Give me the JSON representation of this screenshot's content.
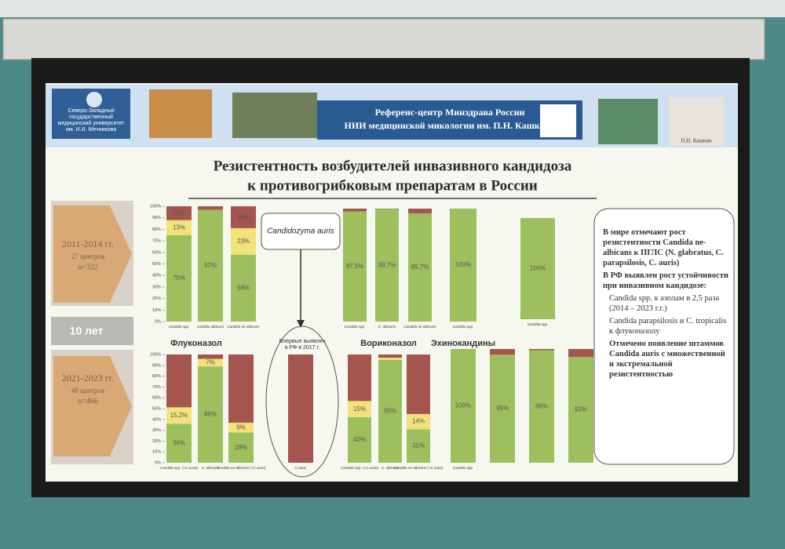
{
  "header": {
    "institute": "Северо-Западный государственный медицинский университет им. И.И. Мечникова",
    "center_line1": "Референс-центр Минздрава России",
    "center_line2": "НИИ медицинской микологии им. П.Н. Кашкина",
    "portrait_caption": "П.Н. Кашкин"
  },
  "title": [
    "Резистентность возбудителей инвазивного кандидоза",
    "к противогрибковым препаратам в России"
  ],
  "periods": [
    {
      "years": "2011-2014 гг.",
      "centers": "27 центров",
      "n": "n=322"
    },
    {
      "years": "2021-2023 гг.",
      "centers": "48 центров",
      "n": "n=466"
    }
  ],
  "interval": "10 лет",
  "drugs": [
    "Флуконазол",
    "Вориконазол",
    "Эхинокандины"
  ],
  "auris": {
    "name": "Candidozyma auris",
    "note": "Впервые выявлен в РФ в 2017 г."
  },
  "notes": [
    "В мире отмечают рост резистентности Candida ne-albicans к ПГЛС (N. glabratus, C. parapsilosis, C. auris)",
    "В РФ выявлен рост устойчивости при инвазивном кандидозе:",
    "Candida spp. к азолам в 2,5 раза (2014 – 2023 г.г.)",
    "Candida parapsilosis и C. tropicalis к флуконазолу",
    "Отмечено появление штаммов Candida auris с множественной и экстремальной резистентностью"
  ],
  "chart_data": [
    {
      "type": "bar",
      "stacked": true,
      "categories": [
        "Candida spp.",
        "Candida albicans",
        "Candida ne-albicans"
      ],
      "ylim": [
        0,
        100
      ],
      "yticks": [
        {
          "value": 0,
          "label": "0%"
        },
        {
          "value": 10,
          "label": "10%"
        },
        {
          "value": 20,
          "label": "20%"
        },
        {
          "value": 30,
          "label": "30%"
        },
        {
          "value": 40,
          "label": "40%"
        },
        {
          "value": 50,
          "label": "50%"
        },
        {
          "value": 60,
          "label": "60%"
        },
        {
          "value": 70,
          "label": "70%"
        },
        {
          "value": 80,
          "label": "80%"
        },
        {
          "value": 90,
          "label": "90%"
        },
        {
          "value": 100,
          "label": "100%"
        }
      ],
      "series": [
        {
          "color": "#9dbf5e",
          "values": [
            75,
            97,
            58
          ],
          "value_labels": [
            "75%",
            "97%",
            "58%"
          ]
        },
        {
          "color": "#f2e27a",
          "values": [
            13,
            0,
            23
          ],
          "value_labels": [
            "13%",
            null,
            "23%"
          ]
        },
        {
          "color": "#a4564e",
          "values": [
            12,
            3,
            19
          ],
          "value_labels": [
            "12%",
            null,
            "19%"
          ]
        }
      ]
    },
    {
      "type": "bar",
      "stacked": true,
      "categories": [
        "Candida spp.",
        "C. albicans",
        "Candida ne-albicans"
      ],
      "ylim": [
        0,
        100
      ],
      "series": [
        {
          "color": "#9dbf5e",
          "values": [
            97.5,
            99.7,
            95.7
          ],
          "value_labels": [
            "97,5%",
            "99,7%",
            "95,7%"
          ]
        },
        {
          "color": "#a4564e",
          "values": [
            2.5,
            0.3,
            4.3
          ],
          "value_labels": [
            null,
            null,
            null
          ]
        }
      ]
    },
    {
      "type": "bar",
      "stacked": true,
      "categories": [
        "Candida spp."
      ],
      "ylim": [
        0,
        100
      ],
      "series": [
        {
          "color": "#9dbf5e",
          "values": [
            100
          ],
          "value_labels": [
            "100%"
          ]
        }
      ]
    },
    {
      "type": "bar",
      "stacked": true,
      "categories": [
        "Candida spp."
      ],
      "ylim": [
        0,
        100
      ],
      "series": [
        {
          "color": "#9dbf5e",
          "values": [
            100
          ],
          "value_labels": [
            "100%"
          ]
        }
      ]
    },
    {
      "type": "bar",
      "stacked": true,
      "categories": [
        "Candida spp. (+C.auris)",
        "C. albicans",
        "Candida ne-albicans (+C.auris)"
      ],
      "ylim": [
        0,
        100
      ],
      "yticks": [
        {
          "value": 0,
          "label": "0%"
        },
        {
          "value": 10,
          "label": "10%"
        },
        {
          "value": 20,
          "label": "20%"
        },
        {
          "value": 30,
          "label": "30%"
        },
        {
          "value": 40,
          "label": "40%"
        },
        {
          "value": 50,
          "label": "50%"
        },
        {
          "value": 60,
          "label": "60%"
        },
        {
          "value": 70,
          "label": "70%"
        },
        {
          "value": 80,
          "label": "80%"
        },
        {
          "value": 90,
          "label": "90%"
        },
        {
          "value": 100,
          "label": "100%"
        }
      ],
      "series": [
        {
          "color": "#9dbf5e",
          "values": [
            36,
            89,
            28
          ],
          "value_labels": [
            "36%",
            "89%",
            "28%"
          ]
        },
        {
          "color": "#f2e27a",
          "values": [
            15.2,
            7,
            9
          ],
          "value_labels": [
            "15,2%",
            "7%",
            "9%"
          ]
        },
        {
          "color": "#a4564e",
          "values": [
            48.8,
            4,
            63
          ],
          "value_labels": [
            null,
            null,
            null
          ]
        }
      ]
    },
    {
      "type": "bar",
      "stacked": true,
      "categories": [
        "C.auris"
      ],
      "ylim": [
        0,
        100
      ],
      "series": [
        {
          "color": "#a4564e",
          "values": [
            100
          ],
          "value_labels": [
            null
          ]
        }
      ]
    },
    {
      "type": "bar",
      "stacked": true,
      "categories": [
        "Candida spp. (+C.auris)",
        "C. albicans",
        "Candida ne-albicans (+C.auris)"
      ],
      "ylim": [
        0,
        100
      ],
      "series": [
        {
          "color": "#9dbf5e",
          "values": [
            42,
            95,
            31
          ],
          "value_labels": [
            "42%",
            "95%",
            "31%"
          ]
        },
        {
          "color": "#f2e27a",
          "values": [
            15,
            2,
            14
          ],
          "value_labels": [
            "15%",
            null,
            "14%"
          ]
        },
        {
          "color": "#a4564e",
          "values": [
            43,
            3,
            55
          ],
          "value_labels": [
            null,
            null,
            null
          ]
        }
      ]
    },
    {
      "type": "bar",
      "stacked": true,
      "categories": [
        "Candida spp.",
        null,
        null,
        null
      ],
      "ylim": [
        0,
        100
      ],
      "series": [
        {
          "color": "#9dbf5e",
          "values": [
            100,
            95,
            99,
            93
          ],
          "value_labels": [
            "100%",
            "95%",
            "99%",
            "93%"
          ]
        },
        {
          "color": "#a4564e",
          "values": [
            0,
            5,
            1,
            7
          ],
          "value_labels": [
            null,
            null,
            null,
            null
          ]
        }
      ]
    }
  ]
}
